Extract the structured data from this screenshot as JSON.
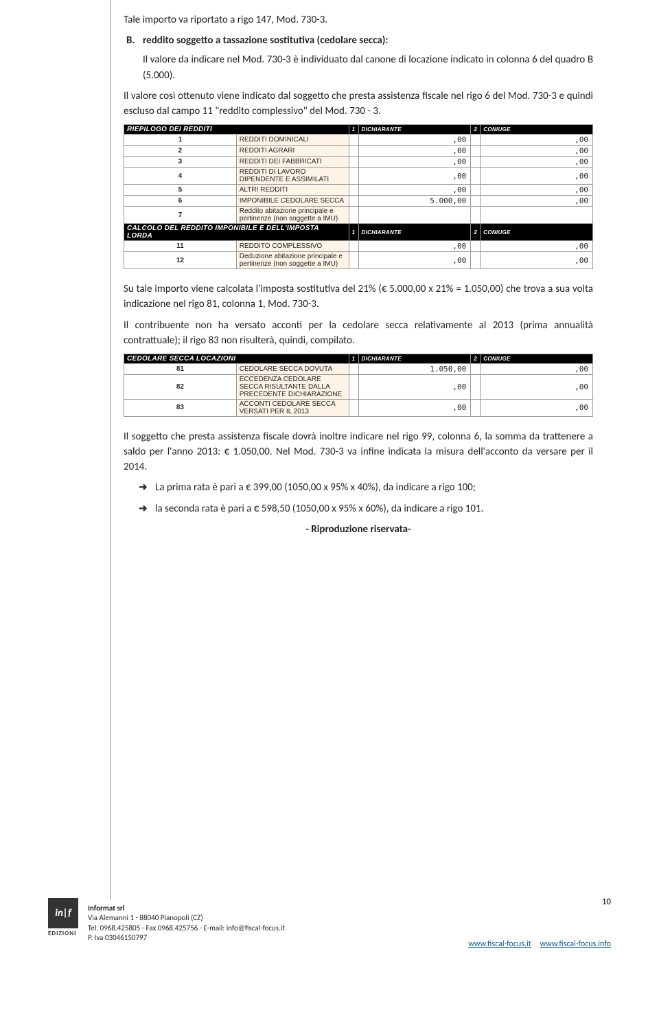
{
  "para1": "Tale importo va riportato a rigo 147, Mod. 730-3.",
  "listB": {
    "label": "B.",
    "title": "reddito soggetto a tassazione sostitutiva (cedolare secca):",
    "text": "Il valore da indicare nel Mod. 730-3 è individuato dal canone di locazione indicato in colonna 6 del quadro B (5.000)."
  },
  "para2": "Il valore così ottenuto viene indicato dal soggetto che presta assistenza fiscale nel rigo 6 del Mod. 730-3 e quindi escluso dal campo 11 \"reddito complessivo\" del Mod. 730 - 3.",
  "table1": {
    "headerA": "RIEPILOGO DEI REDDITI",
    "headerB": "CALCOLO DEL REDDITO IMPONIBILE E DELL'IMPOSTA LORDA",
    "col1label": "DICHIARANTE",
    "col2label": "CONIUGE",
    "rows1": [
      {
        "n": "1",
        "d": "REDDITI DOMINICALI",
        "v1": ",00",
        "v2": ",00"
      },
      {
        "n": "2",
        "d": "REDDITI AGRARI",
        "v1": ",00",
        "v2": ",00"
      },
      {
        "n": "3",
        "d": "REDDITI DEI FABBRICATI",
        "v1": ",00",
        "v2": ",00"
      },
      {
        "n": "4",
        "d": "REDDITI DI LAVORO DIPENDENTE E ASSIMILATI",
        "v1": ",00",
        "v2": ",00"
      },
      {
        "n": "5",
        "d": "ALTRI REDDITI",
        "v1": ",00",
        "v2": ",00"
      },
      {
        "n": "6",
        "d": "IMPONIBILE CEDOLARE SECCA",
        "v1": "5.000,00",
        "v2": ",00"
      },
      {
        "n": "7",
        "d": "Reddito abitazione principale e pertinenze (non soggette a IMU)",
        "v1": "",
        "v2": ""
      }
    ],
    "rows2": [
      {
        "n": "11",
        "d": "REDDITO COMPLESSIVO",
        "v1": ",00",
        "v2": ",00"
      },
      {
        "n": "12",
        "d": "Deduzione abitazione principale e pertinenze (non soggette a IMU)",
        "v1": ",00",
        "v2": ",00"
      }
    ]
  },
  "para3": "Su tale importo viene calcolata l'imposta sostitutiva del 21% (€ 5.000,00 x 21% = 1.050,00) che trova a sua volta indicazione nel rigo 81, colonna 1, Mod. 730-3.",
  "para4": "Il contribuente non ha versato acconti per la cedolare secca relativamente al 2013 (prima annualità contrattuale); il rigo 83 non risulterà, quindi, compilato.",
  "table2": {
    "header": "CEDOLARE SECCA LOCAZIONI",
    "col1label": "DICHIARANTE",
    "col2label": "CONIUGE",
    "rows": [
      {
        "n": "81",
        "d": "CEDOLARE SECCA DOVUTA",
        "v1": "1.050,00",
        "v2": ",00"
      },
      {
        "n": "82",
        "d": "ECCEDENZA CEDOLARE SECCA RISULTANTE DALLA PRECEDENTE DICHIARAZIONE",
        "v1": ",00",
        "v2": ",00"
      },
      {
        "n": "83",
        "d": "ACCONTI CEDOLARE SECCA VERSATI PER IL 2013",
        "v1": ",00",
        "v2": ",00"
      }
    ]
  },
  "para5": "Il soggetto che presta assistenza fiscale dovrà inoltre indicare nel rigo 99, colonna 6, la somma da trattenere a saldo per l'anno 2013: € 1.050,00. Nel Mod. 730-3 va infine indicata la misura dell'acconto da versare per il 2014.",
  "bullet1": "La prima rata è pari a € 399,00 (1050,00 x 95% x 40%), da indicare a rigo 100;",
  "bullet2": "la seconda rata è pari a € 598,50 (1050,00 x 95% x 60%), da indicare a rigo 101.",
  "riservata": "- Riproduzione riservata-",
  "footer": {
    "logo": "in|f",
    "edizioni": "EDIZIONI",
    "company": "Informat srl",
    "addr1": "Via Alemanni 1 - 88040 Pianopoli (CZ)",
    "addr2": "Tel. 0968.425805 - Fax 0968.425756 - E-mail: info@fiscal-focus.it",
    "addr3": "P. Iva 03046150797",
    "page": "10",
    "link1": "www.fiscal-focus.it",
    "link2": "www.fiscal-focus.info"
  }
}
